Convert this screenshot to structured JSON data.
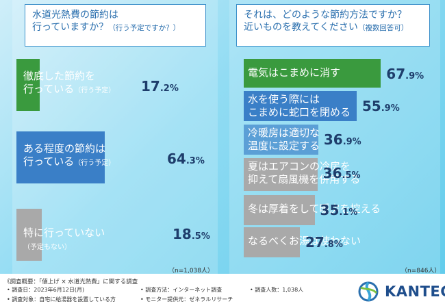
{
  "left": {
    "question_line1": "水道光熱費の節約は",
    "question_line2": "行っていますか？",
    "question_note": "（行う予定ですか？）",
    "n_label": "（n=1,038人）"
  },
  "right": {
    "question_line1": "それは、どのような節約方法ですか？",
    "question_line2": "近いものを教えてください",
    "question_note": "（複数回答可）",
    "n_label": "（n=846人）"
  },
  "chart_data": [
    {
      "type": "bar",
      "orientation": "horizontal",
      "categories": [
        "徹底した節約を行っている（行う予定）",
        "ある程度の節約は行っている（行う予定）",
        "特に行っていない（予定もない）"
      ],
      "values": [
        17.2,
        64.3,
        18.5
      ],
      "unit": "%",
      "colors": [
        "#3a9a3e",
        "#3a7fc7",
        "#a9a9a9"
      ]
    },
    {
      "type": "bar",
      "orientation": "horizontal",
      "categories": [
        "電気はこまめに消す",
        "水を使う際にはこまめに蛇口を閉める",
        "冷暖房は適切な温度に設定する",
        "夏はエアコンの冷房を抑えて扇風機を併用する",
        "冬は厚着をして暖房を控える",
        "なるべくお湯は使わない"
      ],
      "values": [
        67.9,
        55.9,
        36.9,
        36.5,
        35.1,
        27.8
      ],
      "unit": "%",
      "colors": [
        "#3a9a3e",
        "#3a7fc7",
        "#5b9fd6",
        "#a9a9a9",
        "#a9a9a9",
        "#a9a9a9"
      ]
    }
  ],
  "labels": {
    "left": [
      {
        "line1": "徹底した節約を",
        "line2": "行っている",
        "note": "（行う予定）",
        "int": "17",
        "dec": ".2%"
      },
      {
        "line1": "ある程度の節約は",
        "line2": "行っている",
        "note": "（行う予定）",
        "int": "64",
        "dec": ".3%"
      },
      {
        "line1": "特に行っていない",
        "line2": "",
        "note": "（予定もない）",
        "int": "18",
        "dec": ".5%"
      }
    ],
    "right": [
      {
        "line1": "電気はこまめに消す",
        "line2": "",
        "int": "67",
        "dec": ".9%"
      },
      {
        "line1": "水を使う際には",
        "line2": "こまめに蛇口を閉める",
        "int": "55",
        "dec": ".9%"
      },
      {
        "line1": "冷暖房は適切な",
        "line2": "温度に設定する",
        "int": "36",
        "dec": ".9%"
      },
      {
        "line1": "夏はエアコンの冷房を",
        "line2": "抑えて扇風機を併用する",
        "int": "36",
        "dec": ".5%"
      },
      {
        "line1": "冬は厚着をして暖房を控える",
        "line2": "",
        "int": "35",
        "dec": ".1%"
      },
      {
        "line1": "なるべくお湯は使わない",
        "line2": "",
        "int": "27",
        "dec": ".8%"
      }
    ]
  },
  "footer": {
    "title": "《調査概要：「値上げ × 水道光熱費」に関する調査",
    "items": [
      "• 調査日：2023年6月12日(月)",
      "• 調査方法：インターネット調査",
      "• 調査人数：1,038人",
      "• 調査対象：自宅に給湯器を設置している方",
      "• モニター提供元：ゼネラルリサーチ"
    ],
    "logo_text": "KANTEC"
  }
}
